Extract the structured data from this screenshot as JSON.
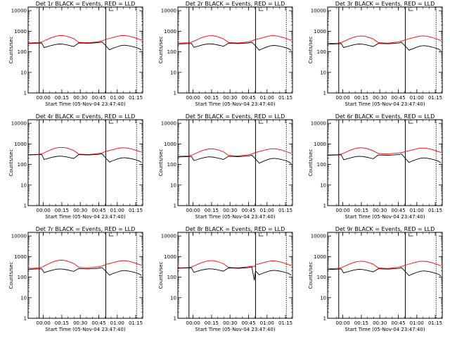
{
  "figure": {
    "x_axis_label": "Start Time (05-Nov-04 23:47:40)",
    "y_axis_label": "Counts/sec",
    "x_tick_labels": [
      "00:00",
      "00:15",
      "00:30",
      "00:45",
      "01:00",
      "01:15"
    ],
    "y_tick_labels": [
      "1",
      "10",
      "100",
      "1000",
      "10000"
    ],
    "colors": {
      "events": "#000000",
      "lld": "#ff0000",
      "background": "#ffffff"
    }
  },
  "chart_data": [
    {
      "type": "line",
      "title": "Det 1r BLACK = Events, RED = LLD",
      "xlabel": "Start Time (05-Nov-04 23:47:40)",
      "ylabel": "Counts/sec",
      "x_unit": "minutes after 23:47:40",
      "xlim": [
        0,
        93
      ],
      "ylim": [
        1,
        15000
      ],
      "yscale": "log",
      "vlines": [
        9,
        63,
        88
      ],
      "x": [
        0,
        4,
        8,
        11,
        13,
        16,
        19,
        22,
        25,
        28,
        31,
        34,
        37,
        41,
        45,
        49,
        53,
        57,
        60,
        63,
        66,
        69,
        72,
        75,
        78,
        81,
        84,
        87,
        90,
        92
      ],
      "series": [
        {
          "name": "BLACK = Events",
          "values": [
            250,
            255,
            260,
            270,
            160,
            180,
            205,
            225,
            240,
            235,
            220,
            200,
            180,
            270,
            265,
            260,
            270,
            280,
            300,
            200,
            125,
            150,
            175,
            200,
            210,
            200,
            185,
            165,
            145,
            120
          ]
        },
        {
          "name": "RED = LLD",
          "values": [
            270,
            275,
            280,
            300,
            340,
            410,
            490,
            560,
            610,
            620,
            580,
            510,
            440,
            290,
            280,
            275,
            290,
            310,
            340,
            400,
            450,
            500,
            560,
            610,
            620,
            590,
            540,
            470,
            410,
            370
          ]
        }
      ]
    },
    {
      "type": "line",
      "title": "Det 2r BLACK = Events, RED = LLD",
      "xlabel": "Start Time (05-Nov-04 23:47:40)",
      "ylabel": "Counts/sec",
      "x_unit": "minutes after 23:47:40",
      "xlim": [
        0,
        93
      ],
      "ylim": [
        1,
        15000
      ],
      "yscale": "log",
      "vlines": [
        9,
        63,
        88
      ],
      "x": [
        0,
        4,
        8,
        11,
        13,
        16,
        19,
        22,
        25,
        28,
        31,
        34,
        37,
        41,
        45,
        49,
        53,
        57,
        60,
        63,
        66,
        69,
        72,
        75,
        78,
        81,
        84,
        87,
        90,
        92
      ],
      "series": [
        {
          "name": "BLACK = Events",
          "values": [
            240,
            245,
            250,
            255,
            165,
            185,
            210,
            230,
            245,
            240,
            225,
            205,
            185,
            260,
            255,
            250,
            260,
            270,
            290,
            195,
            120,
            145,
            170,
            195,
            205,
            195,
            180,
            160,
            140,
            115
          ]
        },
        {
          "name": "RED = LLD",
          "values": [
            265,
            270,
            275,
            295,
            330,
            400,
            480,
            550,
            600,
            610,
            570,
            500,
            430,
            285,
            275,
            270,
            285,
            305,
            335,
            395,
            440,
            490,
            550,
            600,
            610,
            580,
            530,
            460,
            400,
            360
          ]
        }
      ]
    },
    {
      "type": "line",
      "title": "Det 3r BLACK = Events, RED = LLD",
      "xlabel": "Start Time (05-Nov-04 23:47:40)",
      "ylabel": "Counts/sec",
      "x_unit": "minutes after 23:47:40",
      "xlim": [
        0,
        93
      ],
      "ylim": [
        1,
        15000
      ],
      "yscale": "log",
      "vlines": [
        9,
        63,
        88
      ],
      "x": [
        0,
        4,
        8,
        11,
        13,
        16,
        19,
        22,
        25,
        28,
        31,
        34,
        37,
        41,
        45,
        49,
        53,
        57,
        60,
        63,
        66,
        69,
        72,
        75,
        78,
        81,
        84,
        87,
        90,
        92
      ],
      "series": [
        {
          "name": "BLACK = Events",
          "values": [
            235,
            240,
            245,
            250,
            160,
            180,
            205,
            225,
            240,
            235,
            220,
            200,
            180,
            255,
            250,
            245,
            255,
            265,
            285,
            190,
            120,
            140,
            165,
            190,
            200,
            190,
            175,
            155,
            135,
            110
          ]
        },
        {
          "name": "RED = LLD",
          "values": [
            255,
            260,
            265,
            285,
            320,
            385,
            460,
            530,
            580,
            590,
            555,
            490,
            420,
            280,
            270,
            265,
            280,
            300,
            330,
            385,
            430,
            480,
            535,
            585,
            595,
            565,
            515,
            450,
            390,
            350
          ]
        }
      ]
    },
    {
      "type": "line",
      "title": "Det 4r BLACK = Events, RED = LLD",
      "xlabel": "Start Time (05-Nov-04 23:47:40)",
      "ylabel": "Counts/sec",
      "x_unit": "minutes after 23:47:40",
      "xlim": [
        0,
        93
      ],
      "ylim": [
        1,
        15000
      ],
      "yscale": "log",
      "vlines": [
        9,
        63,
        88
      ],
      "x": [
        0,
        4,
        8,
        11,
        13,
        16,
        19,
        22,
        25,
        28,
        31,
        34,
        37,
        41,
        45,
        49,
        53,
        57,
        60,
        63,
        66,
        69,
        72,
        75,
        78,
        81,
        84,
        87,
        90,
        92
      ],
      "series": [
        {
          "name": "BLACK = Events",
          "values": [
            290,
            295,
            300,
            305,
            175,
            195,
            220,
            240,
            255,
            250,
            235,
            215,
            195,
            300,
            295,
            290,
            300,
            310,
            330,
            205,
            130,
            155,
            180,
            205,
            215,
            205,
            190,
            170,
            150,
            125
          ]
        },
        {
          "name": "RED = LLD",
          "values": [
            300,
            305,
            310,
            330,
            370,
            450,
            540,
            620,
            670,
            680,
            640,
            560,
            480,
            320,
            310,
            305,
            320,
            340,
            370,
            430,
            480,
            530,
            590,
            640,
            650,
            620,
            570,
            500,
            440,
            400
          ]
        }
      ]
    },
    {
      "type": "line",
      "title": "Det 5r BLACK = Events, RED = LLD",
      "xlabel": "Start Time (05-Nov-04 23:47:40)",
      "ylabel": "Counts/sec",
      "x_unit": "minutes after 23:47:40",
      "xlim": [
        0,
        93
      ],
      "ylim": [
        1,
        15000
      ],
      "yscale": "log",
      "vlines": [
        9,
        63,
        88
      ],
      "x": [
        0,
        4,
        8,
        11,
        13,
        16,
        19,
        22,
        25,
        28,
        31,
        34,
        37,
        41,
        45,
        49,
        53,
        57,
        60,
        63,
        66,
        69,
        72,
        75,
        78,
        81,
        84,
        87,
        90,
        92
      ],
      "series": [
        {
          "name": "BLACK = Events",
          "values": [
            230,
            235,
            240,
            245,
            155,
            175,
            200,
            220,
            235,
            230,
            215,
            195,
            175,
            250,
            245,
            240,
            250,
            260,
            280,
            185,
            115,
            140,
            165,
            190,
            200,
            190,
            175,
            155,
            135,
            110
          ]
        },
        {
          "name": "RED = LLD",
          "values": [
            250,
            255,
            260,
            280,
            315,
            380,
            455,
            520,
            570,
            580,
            545,
            480,
            415,
            275,
            265,
            260,
            275,
            295,
            325,
            380,
            425,
            475,
            530,
            575,
            585,
            555,
            505,
            440,
            385,
            345
          ]
        }
      ]
    },
    {
      "type": "line",
      "title": "Det 6r BLACK = Events, RED = LLD",
      "xlabel": "Start Time (05-Nov-04 23:47:40)",
      "ylabel": "Counts/sec",
      "x_unit": "minutes after 23:47:40",
      "xlim": [
        0,
        93
      ],
      "ylim": [
        1,
        15000
      ],
      "yscale": "log",
      "vlines": [
        9,
        63,
        88
      ],
      "x": [
        0,
        4,
        8,
        11,
        13,
        16,
        19,
        22,
        25,
        28,
        31,
        34,
        37,
        41,
        45,
        49,
        53,
        57,
        60,
        63,
        66,
        69,
        72,
        75,
        78,
        81,
        84,
        87,
        90,
        92
      ],
      "series": [
        {
          "name": "BLACK = Events",
          "values": [
            280,
            285,
            290,
            295,
            170,
            190,
            215,
            235,
            250,
            245,
            230,
            210,
            190,
            290,
            285,
            280,
            290,
            300,
            320,
            200,
            125,
            150,
            175,
            200,
            210,
            200,
            185,
            165,
            145,
            120
          ]
        },
        {
          "name": "RED = LLD",
          "values": [
            290,
            295,
            300,
            320,
            355,
            430,
            510,
            590,
            640,
            650,
            610,
            540,
            460,
            340,
            330,
            330,
            345,
            360,
            380,
            420,
            465,
            515,
            570,
            620,
            630,
            600,
            550,
            480,
            420,
            380
          ]
        }
      ]
    },
    {
      "type": "line",
      "title": "Det 7r BLACK = Events, RED = LLD",
      "xlabel": "Start Time (05-Nov-04 23:47:40)",
      "ylabel": "Counts/sec",
      "x_unit": "minutes after 23:47:40",
      "xlim": [
        0,
        93
      ],
      "ylim": [
        1,
        15000
      ],
      "yscale": "log",
      "vlines": [
        9,
        63,
        88
      ],
      "x": [
        0,
        4,
        8,
        11,
        13,
        16,
        19,
        22,
        25,
        28,
        31,
        34,
        37,
        41,
        45,
        49,
        53,
        57,
        60,
        63,
        66,
        69,
        72,
        75,
        78,
        81,
        84,
        87,
        90,
        92
      ],
      "series": [
        {
          "name": "BLACK = Events",
          "values": [
            240,
            245,
            250,
            255,
            165,
            190,
            215,
            235,
            250,
            245,
            230,
            210,
            190,
            260,
            255,
            250,
            260,
            270,
            290,
            195,
            125,
            150,
            175,
            200,
            210,
            200,
            185,
            165,
            145,
            120
          ]
        },
        {
          "name": "RED = LLD",
          "values": [
            265,
            270,
            280,
            300,
            350,
            430,
            520,
            600,
            660,
            670,
            620,
            540,
            460,
            300,
            290,
            285,
            300,
            320,
            350,
            410,
            460,
            510,
            570,
            620,
            630,
            600,
            550,
            480,
            420,
            380
          ]
        }
      ]
    },
    {
      "type": "line",
      "title": "Det 8r BLACK = Events, RED = LLD",
      "xlabel": "Start Time (05-Nov-04 23:47:40)",
      "ylabel": "Counts/sec",
      "x_unit": "minutes after 23:47:40",
      "xlim": [
        0,
        93
      ],
      "ylim": [
        1,
        15000
      ],
      "yscale": "log",
      "vlines": [
        9,
        63,
        88
      ],
      "x": [
        0,
        4,
        8,
        11,
        13,
        16,
        19,
        22,
        25,
        28,
        31,
        34,
        37,
        41,
        45,
        49,
        53,
        57,
        60,
        62,
        63,
        66,
        69,
        72,
        75,
        78,
        81,
        84,
        87,
        90,
        92
      ],
      "series": [
        {
          "name": "BLACK = Events",
          "values": [
            270,
            275,
            280,
            285,
            170,
            195,
            220,
            240,
            255,
            250,
            235,
            215,
            195,
            280,
            275,
            270,
            280,
            290,
            310,
            70,
            200,
            130,
            155,
            180,
            205,
            215,
            205,
            190,
            170,
            150,
            125
          ]
        },
        {
          "name": "RED = LLD",
          "values": [
            280,
            285,
            290,
            310,
            350,
            420,
            500,
            575,
            625,
            635,
            595,
            525,
            450,
            300,
            290,
            285,
            300,
            320,
            345,
            330,
            395,
            445,
            495,
            555,
            605,
            615,
            585,
            535,
            465,
            405,
            365
          ]
        }
      ]
    },
    {
      "type": "line",
      "title": "Det 9r BLACK = Events, RED = LLD",
      "xlabel": "Start Time (05-Nov-04 23:47:40)",
      "ylabel": "Counts/sec",
      "x_unit": "minutes after 23:47:40",
      "xlim": [
        0,
        93
      ],
      "ylim": [
        1,
        15000
      ],
      "yscale": "log",
      "vlines": [
        9,
        63,
        88
      ],
      "x": [
        0,
        4,
        8,
        11,
        13,
        16,
        19,
        22,
        25,
        28,
        31,
        34,
        37,
        41,
        45,
        49,
        53,
        57,
        60,
        63,
        66,
        69,
        72,
        75,
        78,
        81,
        84,
        87,
        90,
        92
      ],
      "series": [
        {
          "name": "BLACK = Events",
          "values": [
            235,
            240,
            245,
            250,
            160,
            180,
            205,
            225,
            240,
            235,
            220,
            200,
            180,
            255,
            250,
            245,
            255,
            265,
            285,
            190,
            118,
            142,
            168,
            192,
            202,
            192,
            178,
            158,
            138,
            112
          ]
        },
        {
          "name": "RED = LLD",
          "values": [
            255,
            260,
            268,
            288,
            325,
            390,
            465,
            535,
            585,
            595,
            560,
            495,
            425,
            280,
            270,
            265,
            280,
            300,
            330,
            385,
            432,
            482,
            538,
            588,
            598,
            568,
            518,
            452,
            392,
            352
          ]
        }
      ]
    }
  ]
}
